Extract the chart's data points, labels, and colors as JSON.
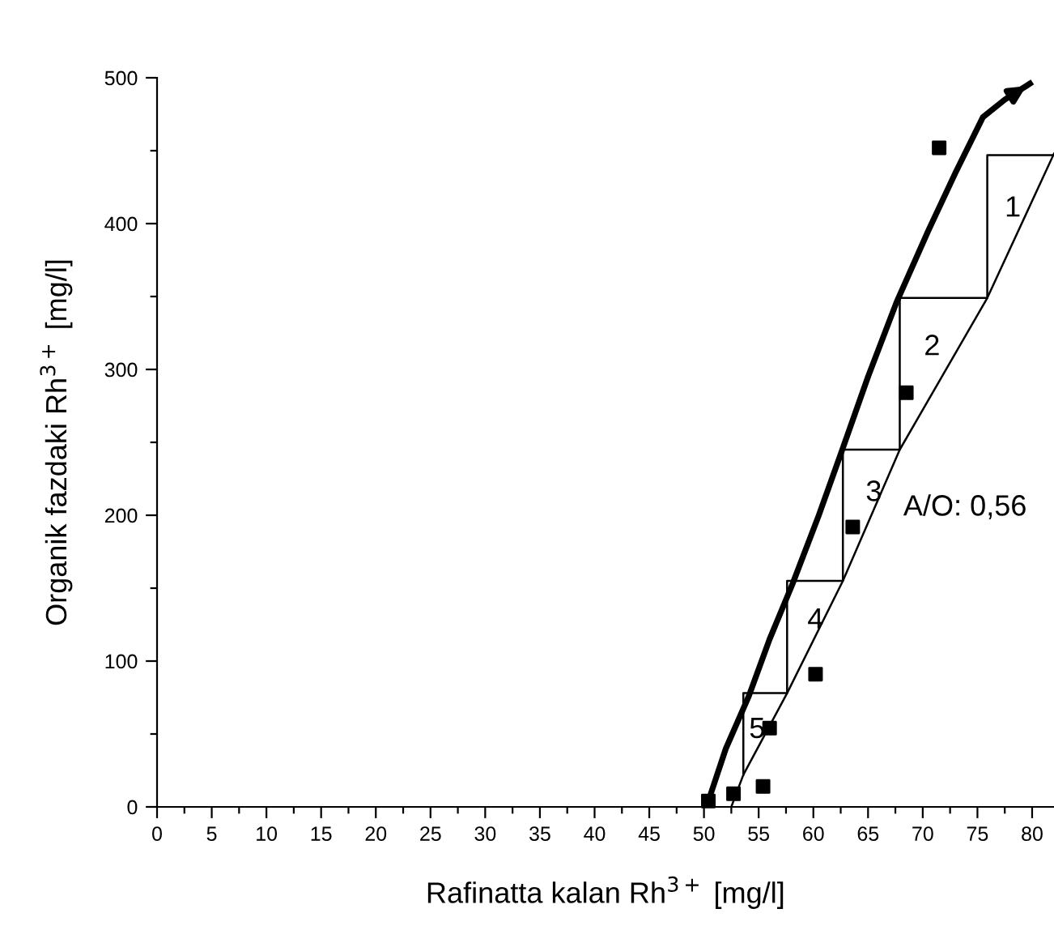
{
  "chart_data": {
    "type": "scatter",
    "xlabel": "Rafinatta kalan Rh$^{3+}$ [mg/l]",
    "ylabel": "Organik fazdaki Rh$^{3+}$ [mg/l]",
    "xlim": [
      0,
      82
    ],
    "ylim": [
      0,
      500
    ],
    "xticks": [
      0,
      {
        "value": 2.5,
        "label": null
      },
      5,
      {
        "value": 7.5,
        "label": null
      },
      10,
      {
        "value": 12.5,
        "label": null
      },
      15,
      {
        "value": 17.5,
        "label": null
      },
      20,
      {
        "value": 22.5,
        "label": null
      },
      25,
      {
        "value": 27.5,
        "label": null
      },
      30,
      {
        "value": 32.5,
        "label": null
      },
      35,
      {
        "value": 37.5,
        "label": null
      },
      40,
      {
        "value": 42.5,
        "label": null
      },
      45,
      {
        "value": 47.5,
        "label": null
      },
      50,
      {
        "value": 52.5,
        "label": null
      },
      55,
      {
        "value": 57.5,
        "label": null
      },
      60,
      {
        "value": 62.5,
        "label": null
      },
      65,
      {
        "value": 67.5,
        "label": null
      },
      70,
      {
        "value": 72.5,
        "label": null
      },
      75,
      {
        "value": 77.5,
        "label": null
      },
      80
    ],
    "yticks": [
      0,
      {
        "value": 50,
        "label": null
      },
      100,
      {
        "value": 150,
        "label": null
      },
      200,
      {
        "value": 250,
        "label": null
      },
      300,
      {
        "value": 350,
        "label": null
      },
      400,
      {
        "value": 450,
        "label": null
      },
      500
    ],
    "grid": false,
    "legend": false,
    "series": [
      {
        "marker": "square",
        "color": "#000000",
        "x": [
          50.4,
          52.7,
          55.4,
          56.0,
          60.2,
          63.6,
          68.5,
          71.5
        ],
        "values": [
          4,
          9,
          14,
          54,
          91,
          192,
          284,
          452
        ]
      },
      {
        "type": "line",
        "marker": "none",
        "line_style": "solid",
        "color": "#000000",
        "x": [
          50.4,
          52.0,
          54.1,
          56.0,
          58.1,
          60.5,
          62.6,
          65.0,
          67.6,
          70.5,
          73.0,
          75.5,
          77.5,
          79.8
        ],
        "values": [
          4,
          40,
          76,
          115,
          153,
          200,
          244,
          295,
          346,
          395,
          435,
          473,
          485,
          496
        ]
      },
      {
        "type": "line",
        "marker": "none",
        "line_style": "solid",
        "color": "#000000",
        "x": [
          52.5,
          53.6,
          57.6,
          62.7,
          67.9,
          75.9,
          82.0
        ],
        "values": [
          0,
          22,
          78,
          155,
          245,
          349,
          448
        ]
      },
      {
        "type": "line",
        "marker": "none",
        "line_style": "solid",
        "color": "#000000",
        "x": [
          82.0,
          75.9,
          75.9,
          67.9,
          67.9,
          62.7,
          62.7,
          57.6,
          57.6,
          53.6,
          53.6
        ],
        "values": [
          447,
          447,
          349,
          349,
          245,
          245,
          155,
          155,
          78,
          78,
          22
        ]
      }
    ],
    "annotations": [
      "1",
      "2",
      "3",
      "4",
      "5",
      "A/O: 0,56"
    ]
  }
}
